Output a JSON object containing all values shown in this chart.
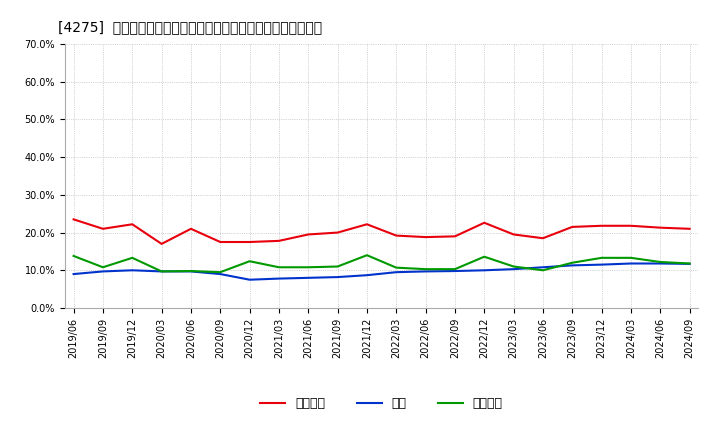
{
  "title": "[4275]  売上債権、在庫、買入債務の総資産に対する比率の推移",
  "x_labels": [
    "2019/06",
    "2019/09",
    "2019/12",
    "2020/03",
    "2020/06",
    "2020/09",
    "2020/12",
    "2021/03",
    "2021/06",
    "2021/09",
    "2021/12",
    "2022/03",
    "2022/06",
    "2022/09",
    "2022/12",
    "2023/03",
    "2023/06",
    "2023/09",
    "2023/12",
    "2024/03",
    "2024/06",
    "2024/09"
  ],
  "uriken": [
    0.235,
    0.21,
    0.222,
    0.17,
    0.21,
    0.175,
    0.175,
    0.178,
    0.195,
    0.2,
    0.222,
    0.192,
    0.188,
    0.19,
    0.226,
    0.195,
    0.185,
    0.215,
    0.218,
    0.218,
    0.213,
    0.21
  ],
  "zaiko": [
    0.09,
    0.097,
    0.1,
    0.097,
    0.097,
    0.09,
    0.075,
    0.078,
    0.08,
    0.082,
    0.087,
    0.095,
    0.097,
    0.098,
    0.1,
    0.103,
    0.108,
    0.113,
    0.115,
    0.118,
    0.118,
    0.117
  ],
  "kaiire": [
    0.138,
    0.108,
    0.133,
    0.097,
    0.098,
    0.095,
    0.124,
    0.108,
    0.108,
    0.11,
    0.14,
    0.107,
    0.103,
    0.103,
    0.136,
    0.11,
    0.1,
    0.12,
    0.133,
    0.133,
    0.122,
    0.118
  ],
  "uriken_color": "#e8000d",
  "zaiko_color": "#0033cc",
  "kaiire_color": "#009900",
  "uriken_label": "売上債権",
  "zaiko_label": "在庫",
  "kaiire_label": "買入債務",
  "ylim": [
    0.0,
    0.7
  ],
  "yticks": [
    0.0,
    0.1,
    0.2,
    0.3,
    0.4,
    0.5,
    0.6,
    0.7
  ],
  "background_color": "#ffffff",
  "grid_color": "#999999",
  "title_fontsize": 10,
  "legend_fontsize": 9,
  "tick_fontsize": 7
}
